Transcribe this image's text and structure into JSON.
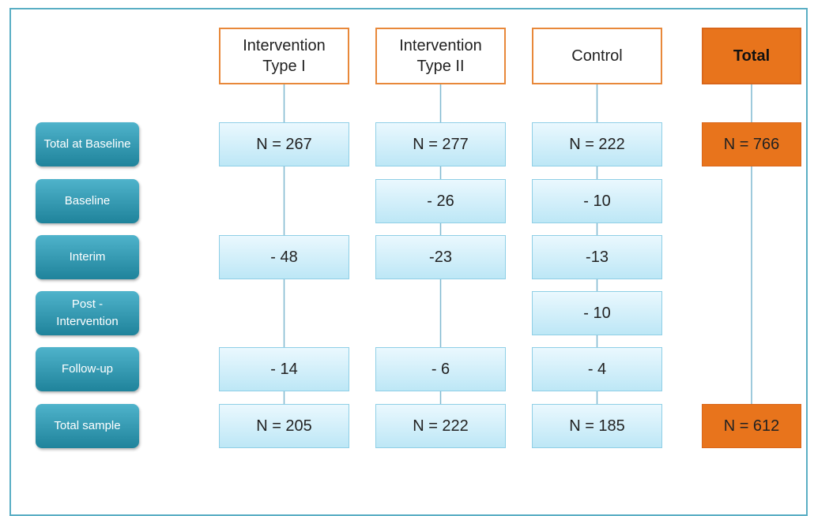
{
  "columns": [
    "Intervention Type I",
    "Intervention Type II",
    "Control",
    "Total"
  ],
  "rows": [
    {
      "label": "Total at Baseline",
      "cells": [
        "N = 267",
        "N = 277",
        "N = 222",
        "N = 766"
      ]
    },
    {
      "label": "Baseline",
      "cells": [
        null,
        "- 26",
        "- 10",
        null
      ]
    },
    {
      "label": "Interim",
      "cells": [
        "- 48",
        "-23",
        "-13",
        null
      ]
    },
    {
      "label": "Post - Intervention",
      "cells": [
        null,
        null,
        "- 10",
        null
      ]
    },
    {
      "label": "Follow-up",
      "cells": [
        "- 14",
        "- 6",
        "- 4",
        null
      ]
    },
    {
      "label": "Total sample",
      "cells": [
        "N = 205",
        "N = 222",
        "N = 185",
        "N = 612"
      ]
    }
  ]
}
